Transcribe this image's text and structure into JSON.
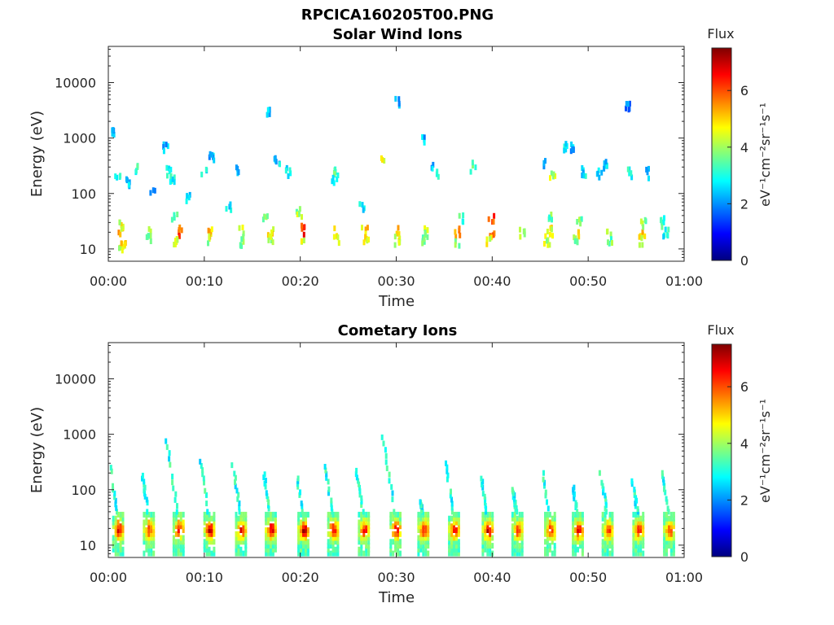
{
  "figure_title": "RPCICA160205T00.PNG",
  "colormap": [
    "#00007f",
    "#0000ff",
    "#007fff",
    "#00ffff",
    "#7fff7f",
    "#ffff00",
    "#ff7f00",
    "#ff0000",
    "#7f0000"
  ],
  "chart_data": [
    {
      "type": "heatmap",
      "title": "Solar Wind Ions",
      "xlabel": "Time",
      "ylabel": "Energy (eV)",
      "x_ticks": [
        "00:00",
        "00:10",
        "00:20",
        "00:30",
        "00:40",
        "00:50",
        "01:00"
      ],
      "x_range_min": [
        0,
        60
      ],
      "y_ticks": [
        "10",
        "100",
        "1000",
        "10000"
      ],
      "y_scale": "log",
      "y_range_eV": [
        6,
        45000
      ],
      "colorbar": {
        "label": "Flux",
        "units": "eV⁻¹cm⁻²sr⁻¹s⁻¹",
        "ticks": [
          "0",
          "2",
          "4",
          "6"
        ],
        "range": [
          0,
          7.5
        ]
      },
      "pixels": [
        {
          "t": 1.2,
          "e": 10,
          "v": 4.2
        },
        {
          "t": 1.2,
          "e": 20,
          "v": 5.3
        },
        {
          "t": 1.4,
          "e": 13,
          "v": 4.8
        },
        {
          "t": 1.3,
          "e": 28,
          "v": 4.5
        },
        {
          "t": 0.9,
          "e": 200,
          "v": 3.0
        },
        {
          "t": 0.2,
          "e": 1300,
          "v": 2.5
        },
        {
          "t": 1.8,
          "e": 160,
          "v": 2.5
        },
        {
          "t": 4.0,
          "e": 20,
          "v": 3.8
        },
        {
          "t": 4.2,
          "e": 16,
          "v": 3.6
        },
        {
          "t": 2.9,
          "e": 260,
          "v": 3.2
        },
        {
          "t": 4.5,
          "e": 120,
          "v": 2.4
        },
        {
          "t": 7.4,
          "e": 20,
          "v": 5.8
        },
        {
          "t": 7.0,
          "e": 14,
          "v": 4.3
        },
        {
          "t": 6.8,
          "e": 35,
          "v": 3.5
        },
        {
          "t": 6.1,
          "e": 240,
          "v": 2.8
        },
        {
          "t": 5.9,
          "e": 650,
          "v": 2.2
        },
        {
          "t": 6.6,
          "e": 180,
          "v": 3.0
        },
        {
          "t": 8.3,
          "e": 80,
          "v": 2.6
        },
        {
          "t": 10.5,
          "e": 20,
          "v": 5.0
        },
        {
          "t": 10.4,
          "e": 14,
          "v": 4.1
        },
        {
          "t": 9.9,
          "e": 260,
          "v": 2.6
        },
        {
          "t": 10.7,
          "e": 420,
          "v": 2.3
        },
        {
          "t": 13.8,
          "e": 20,
          "v": 4.3
        },
        {
          "t": 13.9,
          "e": 13,
          "v": 3.9
        },
        {
          "t": 12.4,
          "e": 60,
          "v": 2.8
        },
        {
          "t": 13.5,
          "e": 250,
          "v": 2.6
        },
        {
          "t": 16.8,
          "e": 20,
          "v": 4.6
        },
        {
          "t": 16.8,
          "e": 14,
          "v": 4.2
        },
        {
          "t": 16.5,
          "e": 2700,
          "v": 2.2
        },
        {
          "t": 17.5,
          "e": 380,
          "v": 2.5
        },
        {
          "t": 16.2,
          "e": 35,
          "v": 3.8
        },
        {
          "t": 20.3,
          "e": 22,
          "v": 6.2
        },
        {
          "t": 20.1,
          "e": 14,
          "v": 4.7
        },
        {
          "t": 19.8,
          "e": 45,
          "v": 4.0
        },
        {
          "t": 18.6,
          "e": 250,
          "v": 2.7
        },
        {
          "t": 23.5,
          "e": 20,
          "v": 4.8
        },
        {
          "t": 23.7,
          "e": 14,
          "v": 4.0
        },
        {
          "t": 23.6,
          "e": 250,
          "v": 3.3
        },
        {
          "t": 23.5,
          "e": 180,
          "v": 2.6
        },
        {
          "t": 26.6,
          "e": 20,
          "v": 4.9
        },
        {
          "t": 26.7,
          "e": 14,
          "v": 4.6
        },
        {
          "t": 26.3,
          "e": 60,
          "v": 2.6
        },
        {
          "t": 28.6,
          "e": 400,
          "v": 4.4
        },
        {
          "t": 30.0,
          "e": 20,
          "v": 5.1
        },
        {
          "t": 30.0,
          "e": 14,
          "v": 4.3
        },
        {
          "t": 30.1,
          "e": 4200,
          "v": 2.2
        },
        {
          "t": 32.9,
          "e": 20,
          "v": 4.2
        },
        {
          "t": 32.8,
          "e": 14,
          "v": 3.8
        },
        {
          "t": 32.8,
          "e": 1000,
          "v": 2.3
        },
        {
          "t": 34.4,
          "e": 240,
          "v": 2.8
        },
        {
          "t": 33.6,
          "e": 280,
          "v": 2.4
        },
        {
          "t": 36.3,
          "e": 20,
          "v": 5.6
        },
        {
          "t": 36.3,
          "e": 14,
          "v": 4.0
        },
        {
          "t": 36.7,
          "e": 35,
          "v": 3.2
        },
        {
          "t": 37.9,
          "e": 300,
          "v": 3.4
        },
        {
          "t": 39.8,
          "e": 20,
          "v": 5.8
        },
        {
          "t": 39.8,
          "e": 35,
          "v": 6.0
        },
        {
          "t": 39.5,
          "e": 14,
          "v": 4.6
        },
        {
          "t": 43.0,
          "e": 20,
          "v": 4.0
        },
        {
          "t": 45.5,
          "e": 350,
          "v": 2.4
        },
        {
          "t": 46.2,
          "e": 230,
          "v": 4.2
        },
        {
          "t": 45.9,
          "e": 20,
          "v": 4.6
        },
        {
          "t": 45.9,
          "e": 35,
          "v": 3.6
        },
        {
          "t": 45.6,
          "e": 14,
          "v": 4.2
        },
        {
          "t": 48.8,
          "e": 20,
          "v": 4.8
        },
        {
          "t": 49.0,
          "e": 35,
          "v": 3.8
        },
        {
          "t": 48.5,
          "e": 14,
          "v": 3.9
        },
        {
          "t": 47.5,
          "e": 700,
          "v": 2.7
        },
        {
          "t": 48.1,
          "e": 650,
          "v": 2.4
        },
        {
          "t": 49.4,
          "e": 250,
          "v": 2.7
        },
        {
          "t": 52.1,
          "e": 20,
          "v": 3.8
        },
        {
          "t": 52.1,
          "e": 14,
          "v": 3.6
        },
        {
          "t": 51.6,
          "e": 320,
          "v": 2.6
        },
        {
          "t": 51.0,
          "e": 230,
          "v": 2.4
        },
        {
          "t": 54.0,
          "e": 3500,
          "v": 1.8
        },
        {
          "t": 55.3,
          "e": 20,
          "v": 5.0
        },
        {
          "t": 55.5,
          "e": 14,
          "v": 4.6
        },
        {
          "t": 55.7,
          "e": 30,
          "v": 3.8
        },
        {
          "t": 54.3,
          "e": 230,
          "v": 3.0
        },
        {
          "t": 56.1,
          "e": 230,
          "v": 2.6
        },
        {
          "t": 57.6,
          "e": 30,
          "v": 3.2
        },
        {
          "t": 58.0,
          "e": 20,
          "v": 3.0
        }
      ]
    },
    {
      "type": "heatmap",
      "title": "Cometary Ions",
      "xlabel": "Time",
      "ylabel": "Energy (eV)",
      "x_ticks": [
        "00:00",
        "00:10",
        "00:20",
        "00:30",
        "00:40",
        "00:50",
        "01:00"
      ],
      "x_range_min": [
        0,
        60
      ],
      "y_ticks": [
        "10",
        "100",
        "1000",
        "10000"
      ],
      "y_scale": "log",
      "y_range_eV": [
        6,
        45000
      ],
      "colorbar": {
        "label": "Flux",
        "units": "eV⁻¹cm⁻²sr⁻¹s⁻¹",
        "ticks": [
          "0",
          "2",
          "4",
          "6"
        ],
        "range": [
          0,
          7.5
        ]
      },
      "bursts_min": [
        1.0,
        4.2,
        7.3,
        10.5,
        13.8,
        16.9,
        20.3,
        23.4,
        26.6,
        29.9,
        32.8,
        36.0,
        39.5,
        42.6,
        46.0,
        48.9,
        52.0,
        55.2,
        58.4
      ],
      "bursts_peak_flux": [
        6.8,
        6.2,
        6.8,
        7.0,
        6.6,
        6.8,
        7.2,
        6.8,
        6.6,
        6.9,
        6.6,
        6.4,
        7.0,
        6.2,
        6.6,
        6.8,
        6.4,
        6.8,
        6.2
      ],
      "dispersion_tails": [
        {
          "t0": 1.0,
          "e_hi": 250
        },
        {
          "t0": 4.2,
          "e_hi": 180
        },
        {
          "t0": 7.3,
          "e_hi": 750
        },
        {
          "t0": 10.5,
          "e_hi": 320
        },
        {
          "t0": 13.8,
          "e_hi": 330
        },
        {
          "t0": 16.9,
          "e_hi": 190
        },
        {
          "t0": 20.3,
          "e_hi": 160
        },
        {
          "t0": 23.4,
          "e_hi": 260
        },
        {
          "t0": 26.6,
          "e_hi": 220
        },
        {
          "t0": 29.9,
          "e_hi": 880
        },
        {
          "t0": 32.8,
          "e_hi": 60
        },
        {
          "t0": 36.0,
          "e_hi": 300
        },
        {
          "t0": 39.5,
          "e_hi": 180
        },
        {
          "t0": 42.6,
          "e_hi": 100
        },
        {
          "t0": 46.0,
          "e_hi": 200
        },
        {
          "t0": 48.9,
          "e_hi": 120
        },
        {
          "t0": 52.0,
          "e_hi": 200
        },
        {
          "t0": 55.2,
          "e_hi": 160
        },
        {
          "t0": 58.4,
          "e_hi": 200
        }
      ]
    }
  ]
}
